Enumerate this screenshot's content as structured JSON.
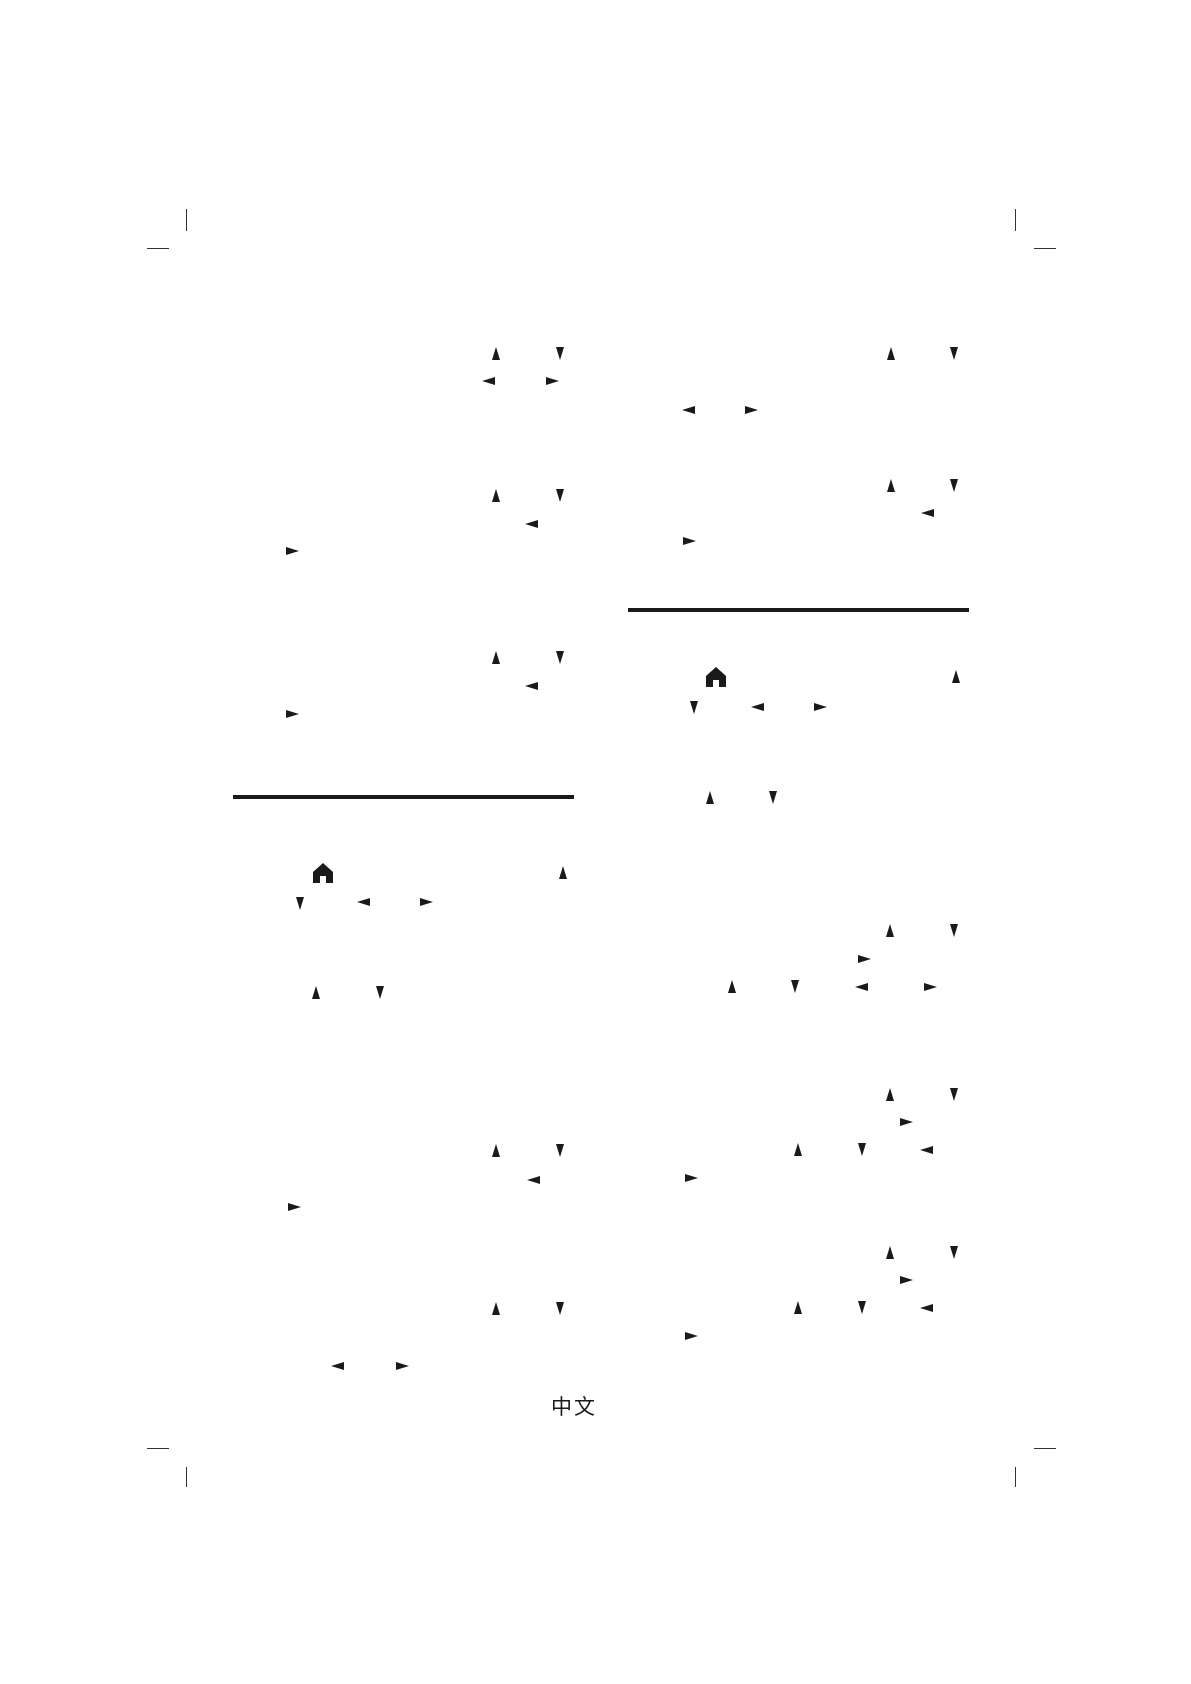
{
  "page": {
    "language_label": "中文",
    "icons": [
      "arrow-up-icon",
      "arrow-down-icon",
      "arrow-left-icon",
      "arrow-right-icon",
      "home-icon"
    ]
  }
}
